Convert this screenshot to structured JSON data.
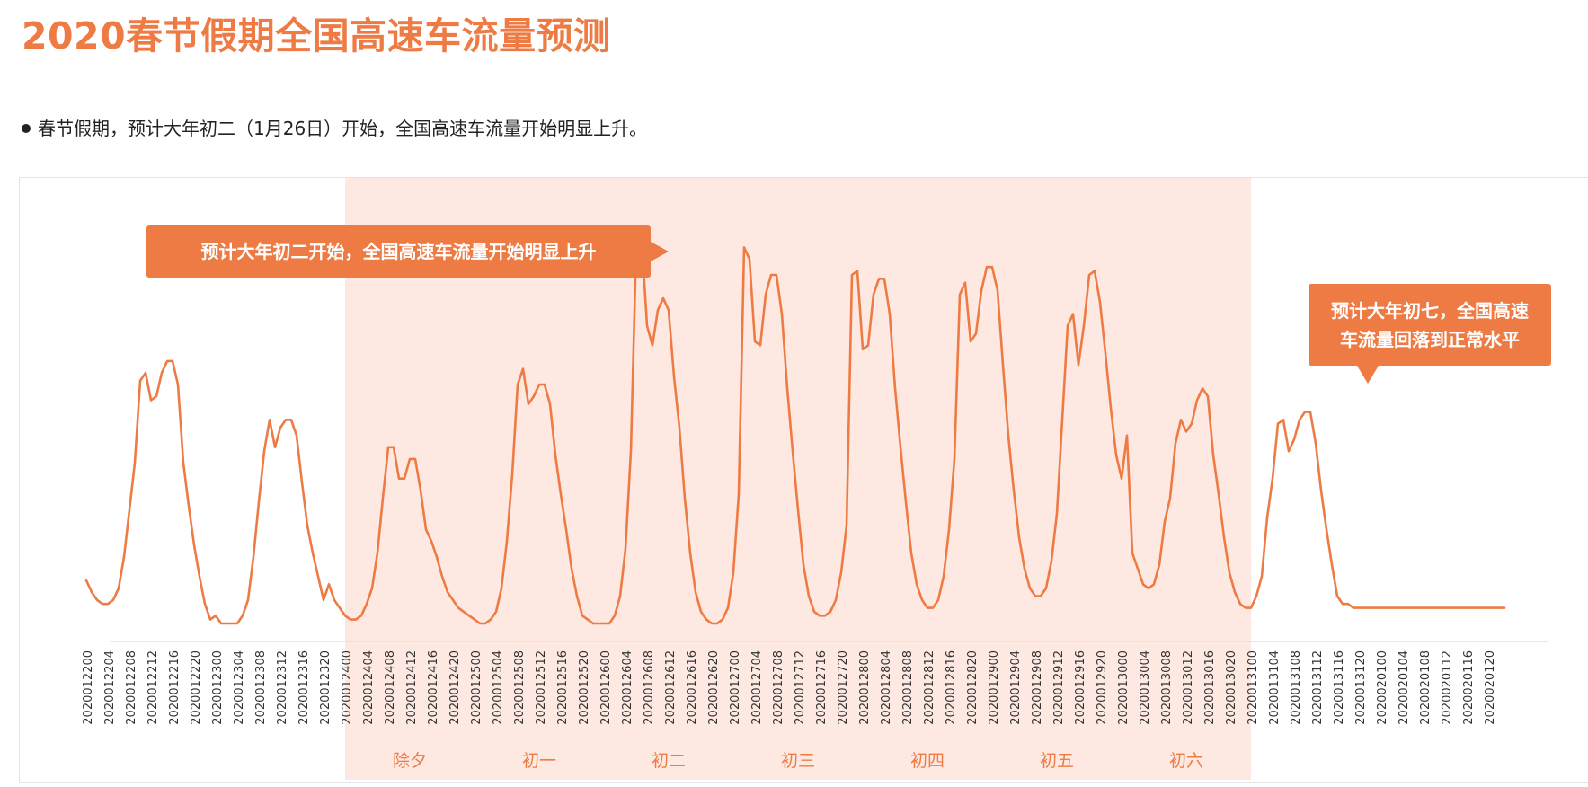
{
  "title": "2020春节假期全国高速车流量预测",
  "subtitle": "春节假期，预计大年初二（1月26日）开始，全国高速车流量开始明显上升。",
  "callouts": {
    "first": "预计大年初二开始，全国高速车流量开始明显上升",
    "second_line1": "预计大年初七，全国高速",
    "second_line2": "车流量回落到正常水平"
  },
  "colors": {
    "accent": "#ee7b44",
    "band": "#fde9e1",
    "band_text": "#ee7b44"
  },
  "chart_data": {
    "type": "line",
    "grid": false,
    "y_axis_shown": false,
    "x_tick_labels": [
      "2020012200",
      "2020012204",
      "2020012208",
      "2020012212",
      "2020012216",
      "2020012220",
      "2020012300",
      "2020012304",
      "2020012308",
      "2020012312",
      "2020012316",
      "2020012320",
      "2020012400",
      "2020012404",
      "2020012408",
      "2020012412",
      "2020012416",
      "2020012420",
      "2020012500",
      "2020012504",
      "2020012508",
      "2020012512",
      "2020012516",
      "2020012520",
      "2020012600",
      "2020012604",
      "2020012608",
      "2020012612",
      "2020012616",
      "2020012620",
      "2020012700",
      "2020012704",
      "2020012708",
      "2020012712",
      "2020012716",
      "2020012720",
      "2020012800",
      "2020012804",
      "2020012808",
      "2020012812",
      "2020012816",
      "2020012820",
      "2020012900",
      "2020012904",
      "2020012908",
      "2020012912",
      "2020012916",
      "2020012920",
      "2020013000",
      "2020013004",
      "2020013008",
      "2020013012",
      "2020013016",
      "2020013020",
      "2020013100",
      "2020013104",
      "2020013108",
      "2020013112",
      "2020013116",
      "2020013120",
      "2020020100",
      "2020020104",
      "2020020108",
      "2020020112",
      "2020020116",
      "2020020120"
    ],
    "shaded_range": {
      "from": "2020012400",
      "to": "2020013100"
    },
    "day_labels": [
      {
        "label": "除夕",
        "day": 24
      },
      {
        "label": "初一",
        "day": 25
      },
      {
        "label": "初二",
        "day": 26
      },
      {
        "label": "初三",
        "day": 27
      },
      {
        "label": "初四",
        "day": 28
      },
      {
        "label": "初五",
        "day": 29
      },
      {
        "label": "初六",
        "day": 30
      }
    ],
    "days": [
      22,
      23,
      24,
      25,
      26,
      27,
      28,
      29,
      30,
      31,
      32
    ],
    "series": [
      {
        "days_hourly": [
          [
            0.11,
            0.08,
            0.06,
            0.05,
            0.05,
            0.06,
            0.09,
            0.17,
            0.29,
            0.41,
            0.62,
            0.64,
            0.57,
            0.58,
            0.64,
            0.67,
            0.67,
            0.61,
            0.41,
            0.3,
            0.2,
            0.12,
            0.05,
            0.01
          ],
          [
            0.02,
            0.0,
            0.0,
            0.0,
            0.0,
            0.02,
            0.06,
            0.17,
            0.31,
            0.44,
            0.52,
            0.45,
            0.5,
            0.52,
            0.52,
            0.48,
            0.36,
            0.25,
            0.18,
            0.12,
            0.06,
            0.1,
            0.06,
            0.04
          ],
          [
            0.02,
            0.01,
            0.01,
            0.02,
            0.05,
            0.09,
            0.18,
            0.32,
            0.45,
            0.45,
            0.37,
            0.37,
            0.42,
            0.42,
            0.34,
            0.24,
            0.21,
            0.17,
            0.12,
            0.08,
            0.06,
            0.04,
            0.03,
            0.02
          ],
          [
            0.01,
            0.0,
            0.0,
            0.01,
            0.03,
            0.09,
            0.21,
            0.38,
            0.61,
            0.65,
            0.56,
            0.58,
            0.61,
            0.61,
            0.56,
            0.43,
            0.33,
            0.24,
            0.14,
            0.07,
            0.02,
            0.01,
            0.0,
            0.0
          ],
          [
            0.0,
            0.0,
            0.02,
            0.07,
            0.19,
            0.44,
            0.97,
            0.98,
            0.76,
            0.71,
            0.8,
            0.83,
            0.8,
            0.63,
            0.5,
            0.32,
            0.18,
            0.08,
            0.03,
            0.01,
            0.0,
            0.0,
            0.01,
            0.04
          ],
          [
            0.13,
            0.33,
            0.96,
            0.93,
            0.72,
            0.71,
            0.84,
            0.89,
            0.89,
            0.79,
            0.6,
            0.44,
            0.29,
            0.15,
            0.07,
            0.03,
            0.02,
            0.02,
            0.03,
            0.06,
            0.13,
            0.25,
            0.89,
            0.9
          ],
          [
            0.7,
            0.71,
            0.84,
            0.88,
            0.88,
            0.79,
            0.6,
            0.45,
            0.31,
            0.18,
            0.1,
            0.06,
            0.04,
            0.04,
            0.06,
            0.12,
            0.24,
            0.42,
            0.84,
            0.87,
            0.72,
            0.74,
            0.85,
            0.91
          ],
          [
            0.91,
            0.85,
            0.66,
            0.48,
            0.34,
            0.22,
            0.14,
            0.09,
            0.07,
            0.07,
            0.09,
            0.16,
            0.28,
            0.52,
            0.76,
            0.79,
            0.66,
            0.76,
            0.89,
            0.9,
            0.82,
            0.69,
            0.55,
            0.43
          ],
          [
            0.37,
            0.48,
            0.18,
            0.14,
            0.1,
            0.09,
            0.1,
            0.15,
            0.26,
            0.32,
            0.46,
            0.52,
            0.49,
            0.51,
            0.57,
            0.6,
            0.58,
            0.43,
            0.33,
            0.22,
            0.13,
            0.08,
            0.05,
            0.04
          ],
          [
            0.04,
            0.07,
            0.12,
            0.27,
            0.37,
            0.51,
            0.52,
            0.44,
            0.47,
            0.52,
            0.54,
            0.54,
            0.46,
            0.34,
            0.24,
            0.15,
            0.07,
            0.05,
            0.05,
            0.04,
            0.04,
            0.04,
            0.04,
            0.04
          ],
          [
            0.04,
            0.04,
            0.04,
            0.04,
            0.04,
            0.04,
            0.04,
            0.04,
            0.04,
            0.04,
            0.04,
            0.04,
            0.04,
            0.04,
            0.04,
            0.04,
            0.04,
            0.04,
            0.04,
            0.04,
            0.04,
            0.04,
            0.04,
            0.04
          ]
        ]
      }
    ]
  }
}
